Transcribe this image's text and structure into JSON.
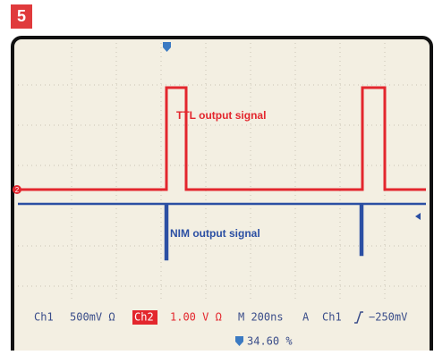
{
  "panel_number": "5",
  "trace_labels": {
    "ttl": "TTL output signal",
    "nim": "NIM output signal"
  },
  "channel_markers": {
    "ch2": "2"
  },
  "status_bar": {
    "ch1": "Ch1",
    "ch1_scale": "500mV Ω",
    "ch2": "Ch2",
    "ch2_scale": "1.00 V Ω",
    "timebase": "M 200ns",
    "trigger_mode": "A",
    "trigger_source": "Ch1",
    "trigger_level": "−250mV",
    "position": "34.60 %"
  }
}
